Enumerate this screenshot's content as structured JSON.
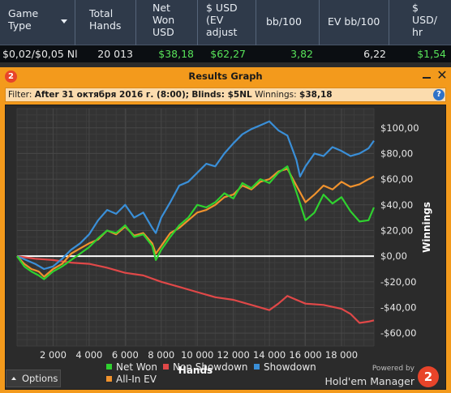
{
  "stats": {
    "headers": [
      {
        "lines": [
          "Game",
          "Type"
        ]
      },
      {
        "lines": [
          "Total",
          "Hands"
        ]
      },
      {
        "lines": [
          "Net",
          "Won",
          "USD"
        ]
      },
      {
        "lines": [
          "$ USD",
          "(EV",
          "adjust"
        ]
      },
      {
        "lines": [
          "bb/100"
        ]
      },
      {
        "lines": [
          "EV bb/100"
        ]
      },
      {
        "lines": [
          "$",
          "USD/",
          "hr"
        ]
      }
    ],
    "row": [
      "$0,02/$0,05 Nl",
      "20 013",
      "$38,18",
      "$62,27",
      "3,82",
      "6,22",
      "$1,54"
    ]
  },
  "window": {
    "logo_text": "2",
    "title": "Results Graph",
    "close_glyph": "✕"
  },
  "filter": {
    "label": "Filter: ",
    "date": "After 31 октября 2016 г. (8:00);",
    "blinds": " Blinds: $5NL",
    "winnings_label": " Winnings: ",
    "winnings_value": "$38,18",
    "help_glyph": "?"
  },
  "footer": {
    "options_label": "Options",
    "powered_by": "Powered by",
    "brand": "Hold'em Manager",
    "brand_logo_text": "2"
  },
  "colors": {
    "window_accent": "#f39a1c",
    "positive_value": "#58e35a",
    "zero_line": "#ffffff"
  },
  "chart_data": {
    "type": "line",
    "xlabel": "Hands",
    "ylabel": "Winnings",
    "xlim": [
      0,
      19800
    ],
    "ylim": [
      -70,
      115
    ],
    "x_ticks": [
      2000,
      4000,
      6000,
      8000,
      10000,
      12000,
      14000,
      16000,
      18000
    ],
    "x_tick_labels": [
      "2 000",
      "4 000",
      "6 000",
      "8 000",
      "10 000",
      "12 000",
      "14 000",
      "16 000",
      "18 000"
    ],
    "y_ticks": [
      100,
      80,
      60,
      40,
      20,
      0,
      -20,
      -40,
      -60
    ],
    "y_tick_labels": [
      "$100,00",
      "$80,00",
      "$60,00",
      "$40,00",
      "$20,00",
      "$0,00",
      "-$20,00",
      "-$40,00",
      "-$60,00"
    ],
    "grid": true,
    "legend_position": "bottom",
    "series": [
      {
        "name": "Net Won",
        "color": "#2fd12f",
        "x": [
          0,
          400,
          800,
          1200,
          1500,
          2000,
          2500,
          3000,
          3500,
          4000,
          4500,
          5000,
          5500,
          6000,
          6500,
          7000,
          7500,
          7700,
          8000,
          8500,
          9000,
          9500,
          10000,
          10500,
          11000,
          11500,
          12000,
          12500,
          13000,
          13500,
          14000,
          14500,
          15000,
          15500,
          16000,
          16500,
          17000,
          17500,
          18000,
          18500,
          19000,
          19500,
          19800
        ],
        "values": [
          0,
          -8,
          -12,
          -15,
          -18,
          -12,
          -8,
          -3,
          2,
          7,
          14,
          20,
          18,
          24,
          15,
          17,
          8,
          -3,
          5,
          15,
          24,
          30,
          40,
          38,
          42,
          49,
          45,
          57,
          53,
          60,
          57,
          65,
          70,
          50,
          28,
          34,
          48,
          41,
          46,
          35,
          27,
          28,
          38
        ]
      },
      {
        "name": "Non Showdown",
        "color": "#e04848",
        "x": [
          0,
          1000,
          2000,
          3000,
          4000,
          5000,
          6000,
          7000,
          8000,
          9000,
          10000,
          11000,
          12000,
          13000,
          14000,
          14500,
          15000,
          15500,
          16000,
          17000,
          18000,
          18500,
          19000,
          19500,
          19800
        ],
        "values": [
          0,
          -2,
          -3,
          -5,
          -6,
          -9,
          -13,
          -15,
          -20,
          -24,
          -28,
          -32,
          -34,
          -38,
          -42,
          -37,
          -31,
          -34,
          -37,
          -38,
          -41,
          -45,
          -52,
          -51,
          -50
        ]
      },
      {
        "name": "Showdown",
        "color": "#3a8fd8",
        "x": [
          0,
          500,
          1000,
          1500,
          2000,
          2500,
          3000,
          3500,
          4000,
          4500,
          5000,
          5500,
          6000,
          6500,
          7000,
          7500,
          7700,
          8000,
          8500,
          9000,
          9500,
          10000,
          10500,
          11000,
          11500,
          12000,
          12500,
          13000,
          13500,
          14000,
          14500,
          15000,
          15500,
          15700,
          16000,
          16500,
          17000,
          17500,
          18000,
          18500,
          19000,
          19500,
          19800
        ],
        "values": [
          0,
          -3,
          -6,
          -10,
          -8,
          -2,
          5,
          10,
          17,
          28,
          36,
          33,
          40,
          30,
          34,
          22,
          18,
          30,
          42,
          55,
          58,
          65,
          72,
          70,
          80,
          88,
          95,
          99,
          102,
          105,
          98,
          94,
          75,
          62,
          70,
          80,
          78,
          85,
          82,
          78,
          80,
          84,
          90
        ]
      },
      {
        "name": "All-In EV",
        "color": "#f0922d",
        "x": [
          0,
          400,
          800,
          1200,
          1500,
          2000,
          2500,
          3000,
          3500,
          4000,
          4500,
          5000,
          5500,
          6000,
          6500,
          7000,
          7500,
          7700,
          8000,
          8500,
          9000,
          9500,
          10000,
          10500,
          11000,
          11500,
          12000,
          12500,
          13000,
          13500,
          14000,
          14500,
          15000,
          15500,
          16000,
          16500,
          17000,
          17500,
          18000,
          18500,
          19000,
          19500,
          19800
        ],
        "values": [
          0,
          -6,
          -10,
          -12,
          -16,
          -10,
          -6,
          2,
          6,
          10,
          13,
          20,
          17,
          23,
          16,
          18,
          10,
          2,
          8,
          18,
          22,
          28,
          34,
          36,
          40,
          46,
          48,
          55,
          52,
          58,
          60,
          66,
          68,
          55,
          42,
          48,
          55,
          52,
          58,
          54,
          56,
          60,
          62
        ]
      }
    ]
  }
}
